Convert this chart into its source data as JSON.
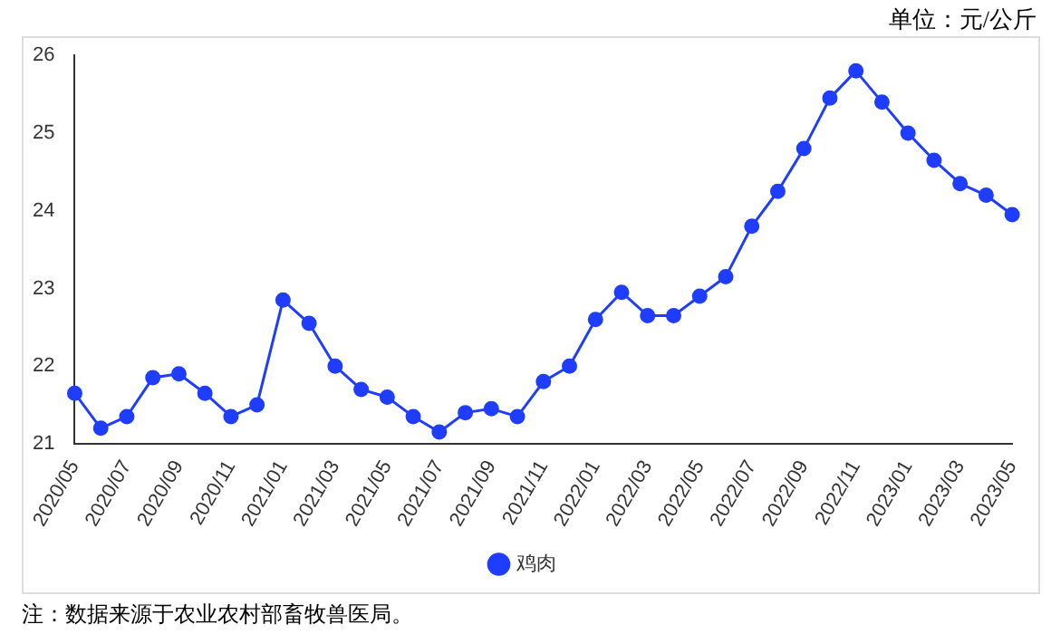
{
  "chart_data": {
    "type": "line",
    "categories": [
      "2020/05",
      null,
      "2020/07",
      null,
      "2020/09",
      null,
      "2020/11",
      null,
      "2021/01",
      null,
      "2021/03",
      null,
      "2021/05",
      null,
      "2021/07",
      null,
      "2021/09",
      null,
      "2021/11",
      null,
      "2022/01",
      null,
      "2022/03",
      null,
      "2022/05",
      null,
      "2022/07",
      null,
      "2022/09",
      null,
      "2022/11",
      null,
      "2023/01",
      null,
      "2023/03",
      null,
      "2023/05"
    ],
    "series": [
      {
        "name": "鸡肉",
        "color": "#1f3dff",
        "values": [
          21.65,
          21.2,
          21.35,
          21.85,
          21.9,
          21.65,
          21.35,
          21.5,
          22.85,
          22.55,
          22.0,
          21.7,
          21.6,
          21.35,
          21.15,
          21.4,
          21.45,
          21.35,
          21.8,
          22.0,
          22.6,
          22.95,
          22.65,
          22.65,
          22.9,
          23.15,
          23.8,
          24.25,
          24.8,
          25.45,
          25.8,
          25.4,
          25.0,
          24.65,
          24.35,
          24.2,
          23.95
        ]
      }
    ],
    "ylim": [
      21,
      26
    ],
    "yticks": [
      21,
      22,
      23,
      24,
      25,
      26
    ],
    "grid": false,
    "legend": "bottom",
    "marker": "circle",
    "line_style": "solid",
    "annotations": [
      "单位：元/公斤",
      "注：数据来源于农业农村部畜牧兽医局。"
    ]
  }
}
